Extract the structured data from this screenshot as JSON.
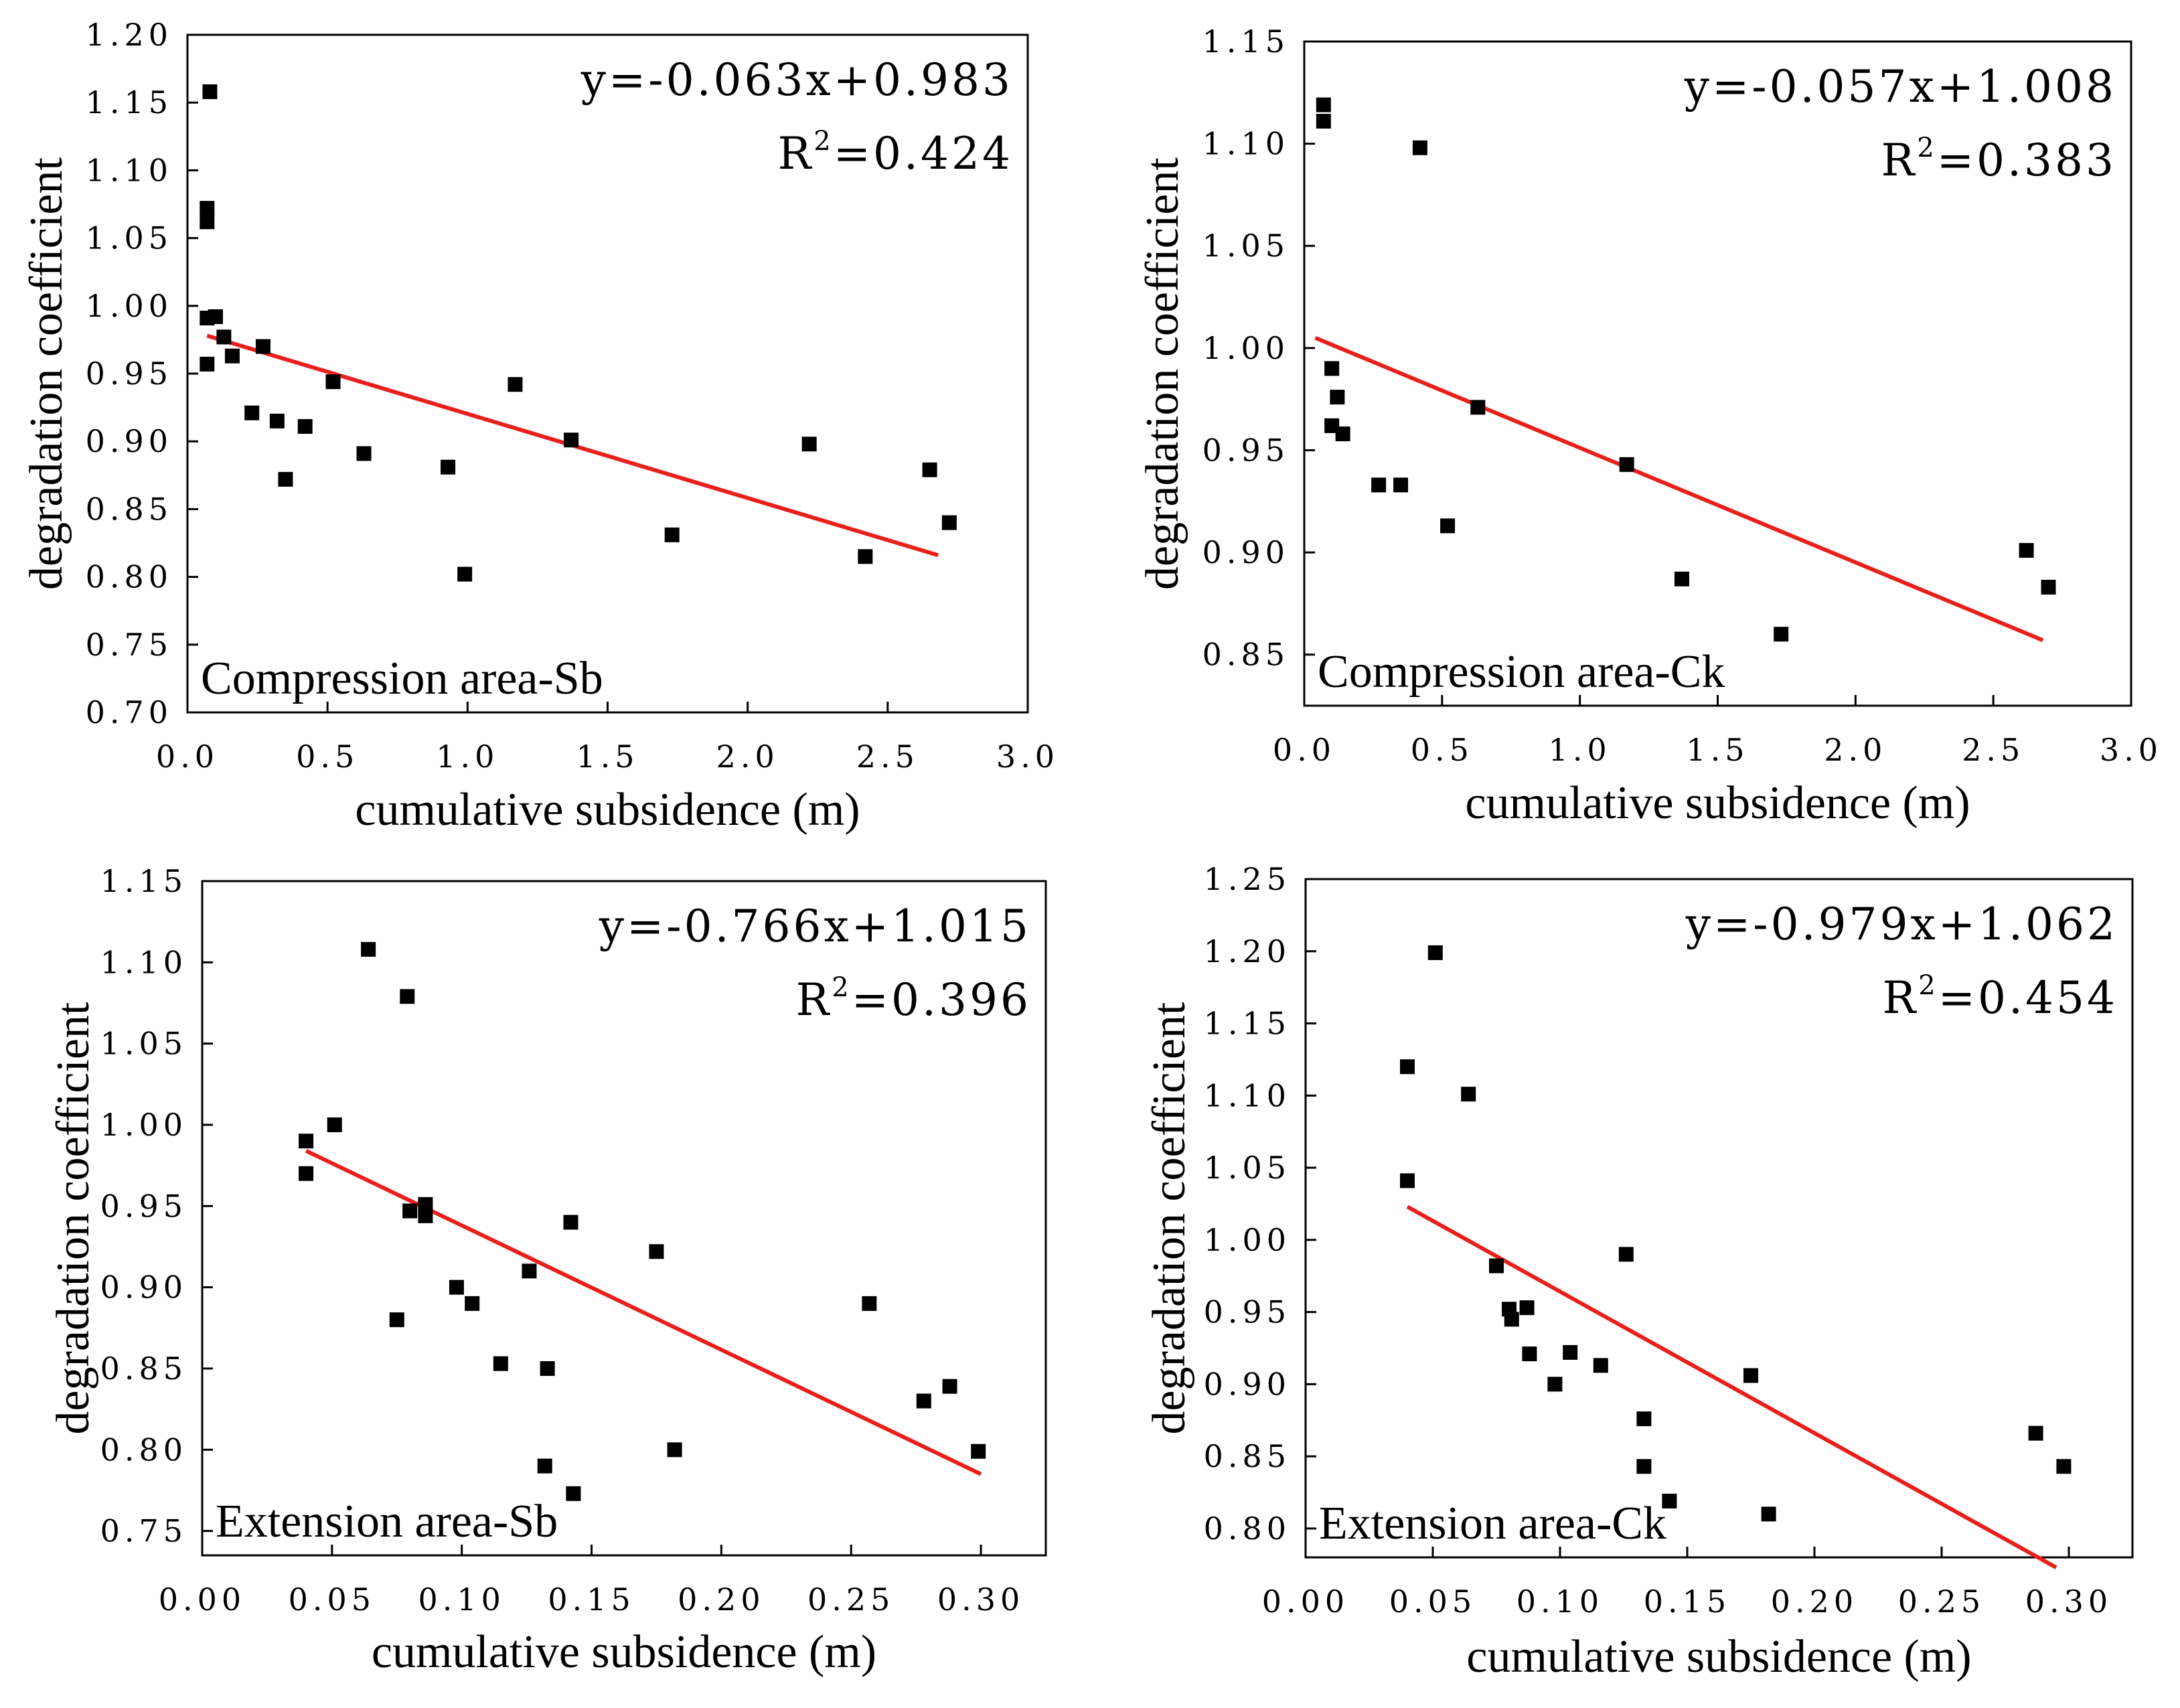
{
  "chart_data": [
    {
      "type": "scatter",
      "label": "Compression area-Sb",
      "xlabel": "cumulative subsidence (m)",
      "ylabel": "degradation coefficient",
      "xlim": [
        0,
        3
      ],
      "ylim": [
        0.7,
        1.2
      ],
      "xticks": [
        "0.0",
        "0.5",
        "1.0",
        "1.5",
        "2.0",
        "2.5",
        "3.0"
      ],
      "yticks": [
        "0.70",
        "0.75",
        "0.80",
        "0.85",
        "0.90",
        "0.95",
        "1.00",
        "1.05",
        "1.10",
        "1.15",
        "1.20"
      ],
      "equation": "y=-0.063x+0.983",
      "r2_prefix": "R",
      "r2_sup": "2",
      "r2_value": "=0.424",
      "fit_color": "#e8201c",
      "fit_line": {
        "x": [
          0.07,
          2.68
        ],
        "y": [
          0.978,
          0.816
        ]
      },
      "points": {
        "x": [
          0.08,
          0.07,
          0.07,
          0.1,
          0.07,
          0.1,
          0.07,
          0.13,
          0.16,
          0.27,
          0.23,
          0.32,
          0.42,
          0.35,
          0.52,
          0.63,
          0.93,
          0.99,
          1.17,
          1.37,
          1.73,
          2.22,
          2.42,
          2.65,
          2.72
        ],
        "y": [
          1.158,
          1.072,
          1.062,
          0.992,
          0.991,
          0.992,
          0.957,
          0.977,
          0.963,
          0.97,
          0.921,
          0.915,
          0.911,
          0.872,
          0.944,
          0.891,
          0.881,
          0.802,
          0.942,
          0.901,
          0.831,
          0.898,
          0.815,
          0.879,
          0.84
        ]
      }
    },
    {
      "type": "scatter",
      "label": "Compression area-Ck",
      "xlabel": "cumulative subsidence (m)",
      "ylabel": "degradation coefficient",
      "xlim": [
        0,
        3
      ],
      "ylim": [
        0.825,
        1.15
      ],
      "xticks": [
        "0.0",
        "0.5",
        "1.0",
        "1.5",
        "2.0",
        "2.5",
        "3.0"
      ],
      "yticks": [
        "0.85",
        "0.90",
        "0.95",
        "1.00",
        "1.05",
        "1.10",
        "1.15"
      ],
      "equation": "y=-0.057x+1.008",
      "r2_prefix": "R",
      "r2_sup": "2",
      "r2_value": "=0.383",
      "fit_color": "#e8201c",
      "fit_line": {
        "x": [
          0.04,
          2.68
        ],
        "y": [
          1.005,
          0.857
        ]
      },
      "points": {
        "x": [
          0.07,
          0.07,
          0.42,
          0.1,
          0.12,
          0.14,
          0.1,
          0.27,
          0.35,
          0.52,
          0.63,
          1.17,
          1.37,
          1.73,
          2.62,
          2.7
        ],
        "y": [
          1.119,
          1.111,
          1.098,
          0.99,
          0.976,
          0.958,
          0.962,
          0.933,
          0.933,
          0.913,
          0.971,
          0.943,
          0.887,
          0.86,
          0.901,
          0.883
        ]
      }
    },
    {
      "type": "scatter",
      "label": "Extension area-Sb",
      "xlabel": "cumulative subsidence (m)",
      "ylabel": "degradation coefficient",
      "xlim": [
        0,
        0.325
      ],
      "ylim": [
        0.735,
        1.15
      ],
      "xticks": [
        "0.00",
        "0.05",
        "0.10",
        "0.15",
        "0.20",
        "0.25",
        "0.30"
      ],
      "yticks": [
        "0.75",
        "0.80",
        "0.85",
        "0.90",
        "0.95",
        "1.00",
        "1.05",
        "1.10",
        "1.15"
      ],
      "equation": "y=-0.766x+1.015",
      "r2_prefix": "R",
      "r2_sup": "2",
      "r2_value": "=0.396",
      "fit_color": "#e8201c",
      "fit_line": {
        "x": [
          0.04,
          0.3
        ],
        "y": [
          0.984,
          0.785
        ]
      },
      "points": {
        "x": [
          0.064,
          0.079,
          0.04,
          0.051,
          0.04,
          0.08,
          0.086,
          0.086,
          0.075,
          0.098,
          0.104,
          0.126,
          0.142,
          0.115,
          0.133,
          0.132,
          0.143,
          0.175,
          0.182,
          0.257,
          0.278,
          0.288,
          0.299
        ],
        "y": [
          1.108,
          1.079,
          0.99,
          1.0,
          0.97,
          0.947,
          0.951,
          0.944,
          0.88,
          0.9,
          0.89,
          0.91,
          0.94,
          0.853,
          0.85,
          0.79,
          0.773,
          0.922,
          0.8,
          0.89,
          0.83,
          0.839,
          0.799
        ]
      }
    },
    {
      "type": "scatter",
      "label": "Extension area-Ck",
      "xlabel": "cumulative subsidence (m)",
      "ylabel": "degradation coefficient",
      "xlim": [
        0,
        0.325
      ],
      "ylim": [
        0.78,
        1.25
      ],
      "xticks": [
        "0.00",
        "0.05",
        "0.10",
        "0.15",
        "0.20",
        "0.25",
        "0.30"
      ],
      "yticks": [
        "0.80",
        "0.85",
        "0.90",
        "0.95",
        "1.00",
        "1.05",
        "1.10",
        "1.15",
        "1.20",
        "1.25"
      ],
      "equation": "y=-0.979x+1.062",
      "r2_prefix": "R",
      "r2_sup": "2",
      "r2_value": "=0.454",
      "fit_color": "#e8201c",
      "fit_line": {
        "x": [
          0.04,
          0.295
        ],
        "y": [
          1.023,
          0.773
        ]
      },
      "points": {
        "x": [
          0.051,
          0.04,
          0.064,
          0.04,
          0.075,
          0.08,
          0.081,
          0.087,
          0.088,
          0.098,
          0.104,
          0.116,
          0.126,
          0.133,
          0.133,
          0.143,
          0.175,
          0.182,
          0.287,
          0.298
        ],
        "y": [
          1.199,
          1.12,
          1.101,
          1.041,
          0.982,
          0.952,
          0.945,
          0.953,
          0.921,
          0.9,
          0.922,
          0.913,
          0.99,
          0.876,
          0.843,
          0.819,
          0.906,
          0.81,
          0.866,
          0.843
        ]
      }
    }
  ]
}
